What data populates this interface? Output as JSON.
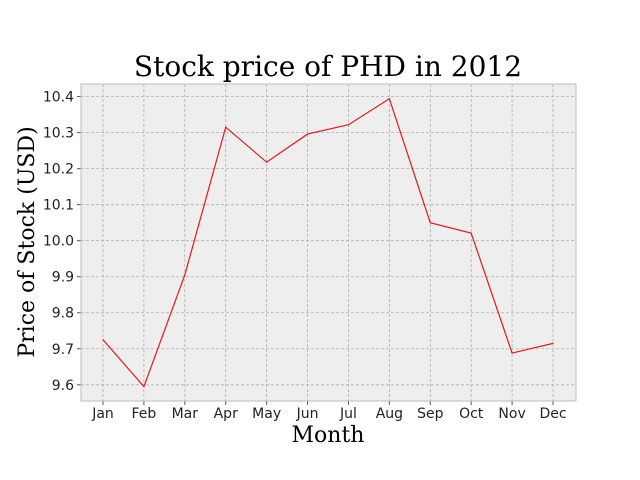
{
  "chart_data": {
    "type": "line",
    "title": "Stock price of PHD in 2012",
    "xlabel": "Month",
    "ylabel": "Price of Stock (USD)",
    "categories": [
      "Jan",
      "Feb",
      "Mar",
      "Apr",
      "May",
      "Jun",
      "Jul",
      "Aug",
      "Sep",
      "Oct",
      "Nov",
      "Dec"
    ],
    "values": [
      9.725,
      9.595,
      9.905,
      10.315,
      10.218,
      10.296,
      10.322,
      10.394,
      10.05,
      10.021,
      9.688,
      9.715
    ],
    "ylim": [
      9.555,
      10.435
    ],
    "yticks": [
      9.6,
      9.7,
      9.8,
      9.9,
      10.0,
      10.1,
      10.2,
      10.3,
      10.4
    ],
    "ytick_labels": [
      "9.6",
      "9.7",
      "9.8",
      "9.9",
      "10.0",
      "10.1",
      "10.2",
      "10.3",
      "10.4"
    ],
    "grid": true,
    "line_color": "#e41a1c",
    "background_color": "#eeeeee",
    "frame_color": "#bcbcbc"
  }
}
